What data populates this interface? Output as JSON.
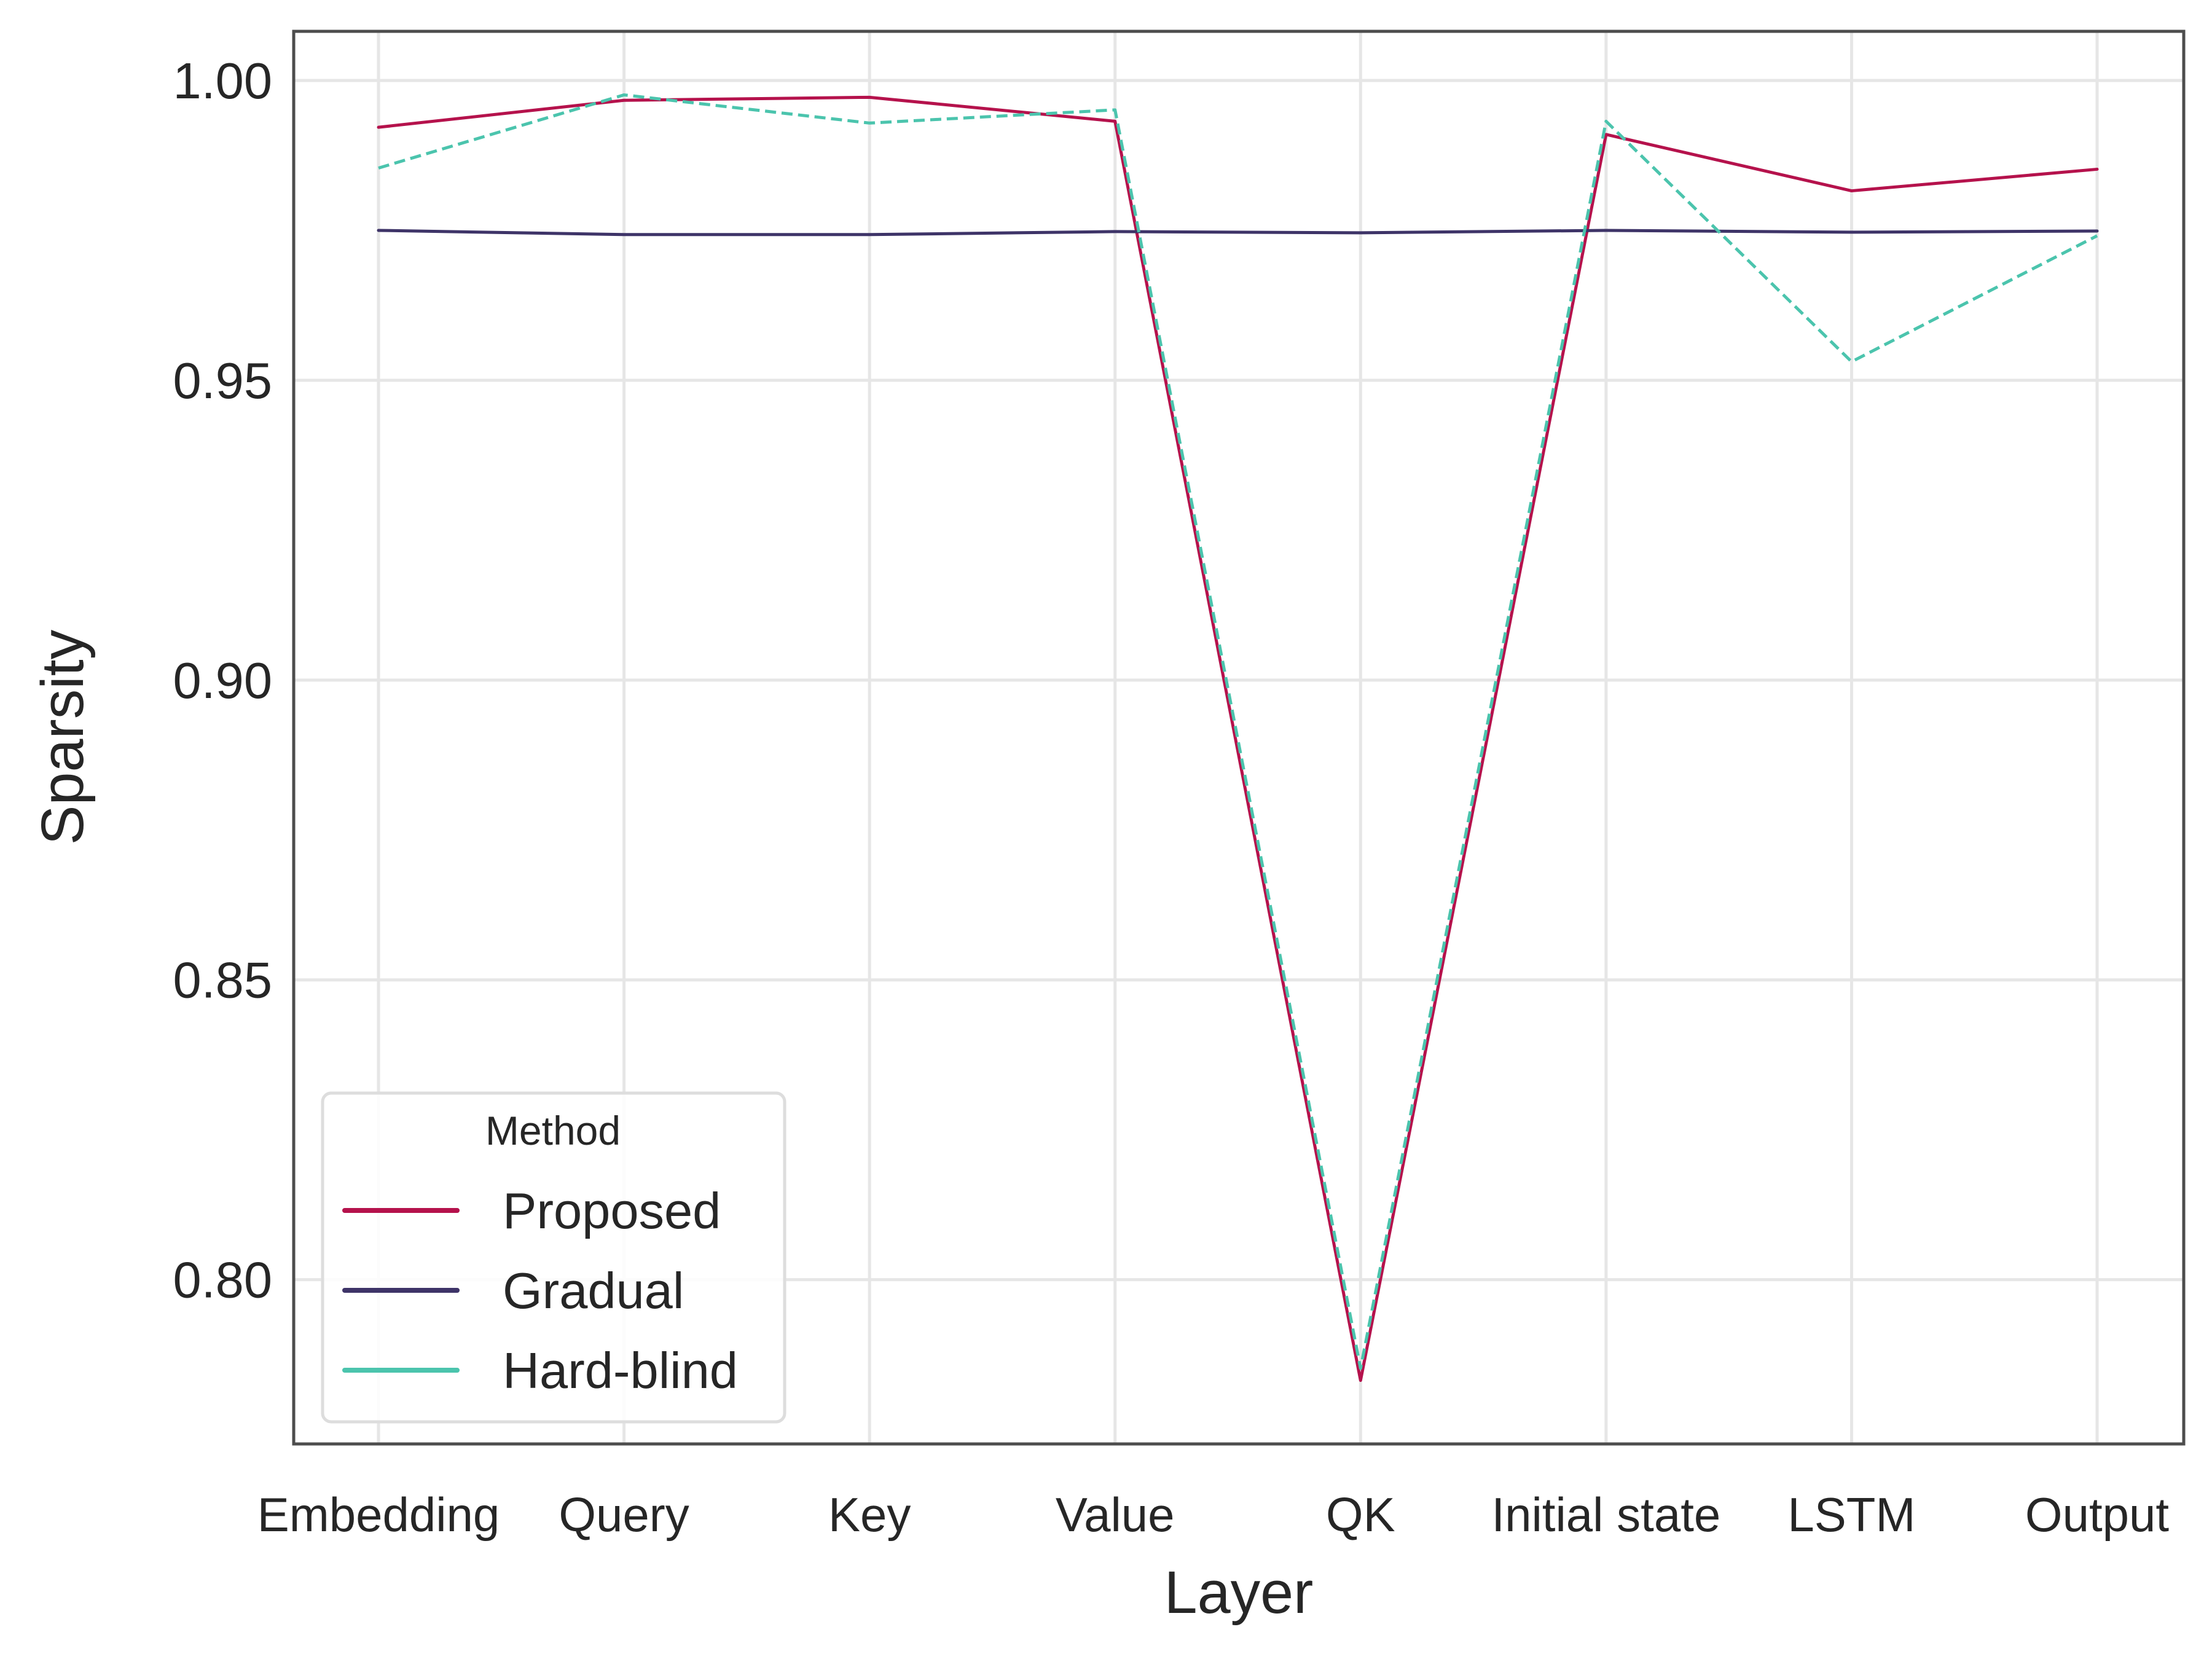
{
  "chart_data": {
    "type": "line",
    "title": "",
    "xlabel": "Layer",
    "ylabel": "Sparsity",
    "categories": [
      "Embedding",
      "Query",
      "Key",
      "Value",
      "QK",
      "Initial state",
      "LSTM",
      "Output"
    ],
    "ylim": [
      0.7726,
      1.0082
    ],
    "yticks": [
      0.8,
      0.85,
      0.9,
      0.95,
      1.0
    ],
    "ytick_labels": [
      "0.80",
      "0.85",
      "0.90",
      "0.95",
      "1.00"
    ],
    "grid": true,
    "legend": {
      "title": "Method",
      "placement": "lower-left"
    },
    "series": [
      {
        "name": "Proposed",
        "color": "#b5124c",
        "dash": "solid",
        "values": [
          0.9922,
          0.9967,
          0.9972,
          0.9932,
          0.7832,
          0.991,
          0.9816,
          0.9852
        ]
      },
      {
        "name": "Gradual",
        "color": "#3e3468",
        "dash": "solid",
        "values": [
          0.975,
          0.9743,
          0.9743,
          0.9748,
          0.9746,
          0.975,
          0.9747,
          0.9749
        ]
      },
      {
        "name": "Hard-blind",
        "color": "#4bc4ad",
        "dash": "dashed",
        "values": [
          0.9854,
          0.9976,
          0.9929,
          0.9951,
          0.7852,
          0.9932,
          0.9531,
          0.9741
        ]
      }
    ]
  }
}
